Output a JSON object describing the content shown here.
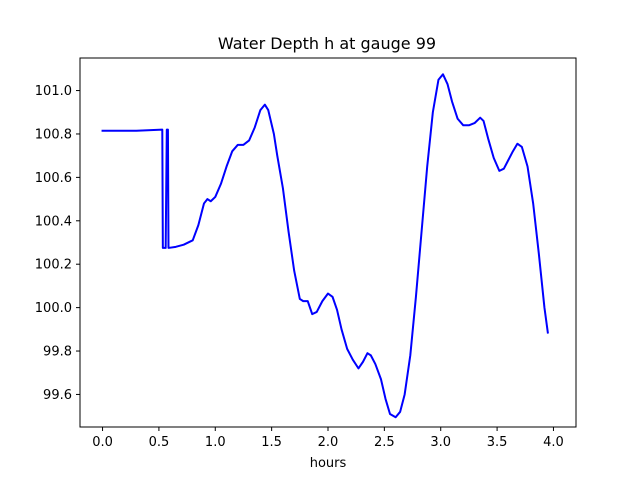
{
  "chart_data": {
    "type": "line",
    "title": "Water Depth h at gauge 99",
    "xlabel": "hours",
    "ylabel": "",
    "xlim": [
      -0.2,
      4.2
    ],
    "ylim": [
      99.45,
      101.15
    ],
    "x_ticks": [
      0.0,
      0.5,
      1.0,
      1.5,
      2.0,
      2.5,
      3.0,
      3.5,
      4.0
    ],
    "x_tick_labels": [
      "0.0",
      "0.5",
      "1.0",
      "1.5",
      "2.0",
      "2.5",
      "3.0",
      "3.5",
      "4.0"
    ],
    "y_ticks": [
      99.6,
      99.8,
      100.0,
      100.2,
      100.4,
      100.6,
      100.8,
      101.0
    ],
    "y_tick_labels": [
      "99.6",
      "99.8",
      "100.0",
      "100.2",
      "100.4",
      "100.6",
      "100.8",
      "101.0"
    ],
    "grid": false,
    "series": [
      {
        "color": "#0000ff",
        "points": [
          [
            0.0,
            100.815
          ],
          [
            0.3,
            100.815
          ],
          [
            0.53,
            100.82
          ],
          [
            0.535,
            100.275
          ],
          [
            0.56,
            100.275
          ],
          [
            0.57,
            100.82
          ],
          [
            0.58,
            100.82
          ],
          [
            0.585,
            100.275
          ],
          [
            0.65,
            100.28
          ],
          [
            0.72,
            100.29
          ],
          [
            0.8,
            100.31
          ],
          [
            0.85,
            100.38
          ],
          [
            0.9,
            100.48
          ],
          [
            0.93,
            100.5
          ],
          [
            0.96,
            100.49
          ],
          [
            1.0,
            100.51
          ],
          [
            1.05,
            100.57
          ],
          [
            1.1,
            100.65
          ],
          [
            1.15,
            100.72
          ],
          [
            1.2,
            100.75
          ],
          [
            1.25,
            100.75
          ],
          [
            1.3,
            100.77
          ],
          [
            1.35,
            100.83
          ],
          [
            1.4,
            100.91
          ],
          [
            1.44,
            100.935
          ],
          [
            1.47,
            100.91
          ],
          [
            1.52,
            100.8
          ],
          [
            1.55,
            100.7
          ],
          [
            1.6,
            100.55
          ],
          [
            1.65,
            100.35
          ],
          [
            1.7,
            100.17
          ],
          [
            1.75,
            100.04
          ],
          [
            1.78,
            100.03
          ],
          [
            1.82,
            100.03
          ],
          [
            1.86,
            99.97
          ],
          [
            1.9,
            99.98
          ],
          [
            1.95,
            100.03
          ],
          [
            2.0,
            100.065
          ],
          [
            2.04,
            100.05
          ],
          [
            2.08,
            99.99
          ],
          [
            2.12,
            99.9
          ],
          [
            2.17,
            99.81
          ],
          [
            2.22,
            99.76
          ],
          [
            2.27,
            99.72
          ],
          [
            2.31,
            99.75
          ],
          [
            2.35,
            99.79
          ],
          [
            2.38,
            99.78
          ],
          [
            2.42,
            99.74
          ],
          [
            2.47,
            99.67
          ],
          [
            2.51,
            99.58
          ],
          [
            2.55,
            99.51
          ],
          [
            2.6,
            99.495
          ],
          [
            2.64,
            99.52
          ],
          [
            2.68,
            99.6
          ],
          [
            2.73,
            99.78
          ],
          [
            2.78,
            100.05
          ],
          [
            2.83,
            100.35
          ],
          [
            2.88,
            100.65
          ],
          [
            2.93,
            100.9
          ],
          [
            2.98,
            101.05
          ],
          [
            3.02,
            101.075
          ],
          [
            3.06,
            101.03
          ],
          [
            3.1,
            100.95
          ],
          [
            3.15,
            100.87
          ],
          [
            3.2,
            100.84
          ],
          [
            3.25,
            100.84
          ],
          [
            3.3,
            100.85
          ],
          [
            3.35,
            100.875
          ],
          [
            3.38,
            100.86
          ],
          [
            3.42,
            100.78
          ],
          [
            3.47,
            100.69
          ],
          [
            3.52,
            100.63
          ],
          [
            3.56,
            100.64
          ],
          [
            3.6,
            100.68
          ],
          [
            3.64,
            100.72
          ],
          [
            3.68,
            100.755
          ],
          [
            3.72,
            100.74
          ],
          [
            3.77,
            100.65
          ],
          [
            3.82,
            100.48
          ],
          [
            3.87,
            100.25
          ],
          [
            3.92,
            100.0
          ],
          [
            3.95,
            99.885
          ]
        ]
      }
    ]
  }
}
